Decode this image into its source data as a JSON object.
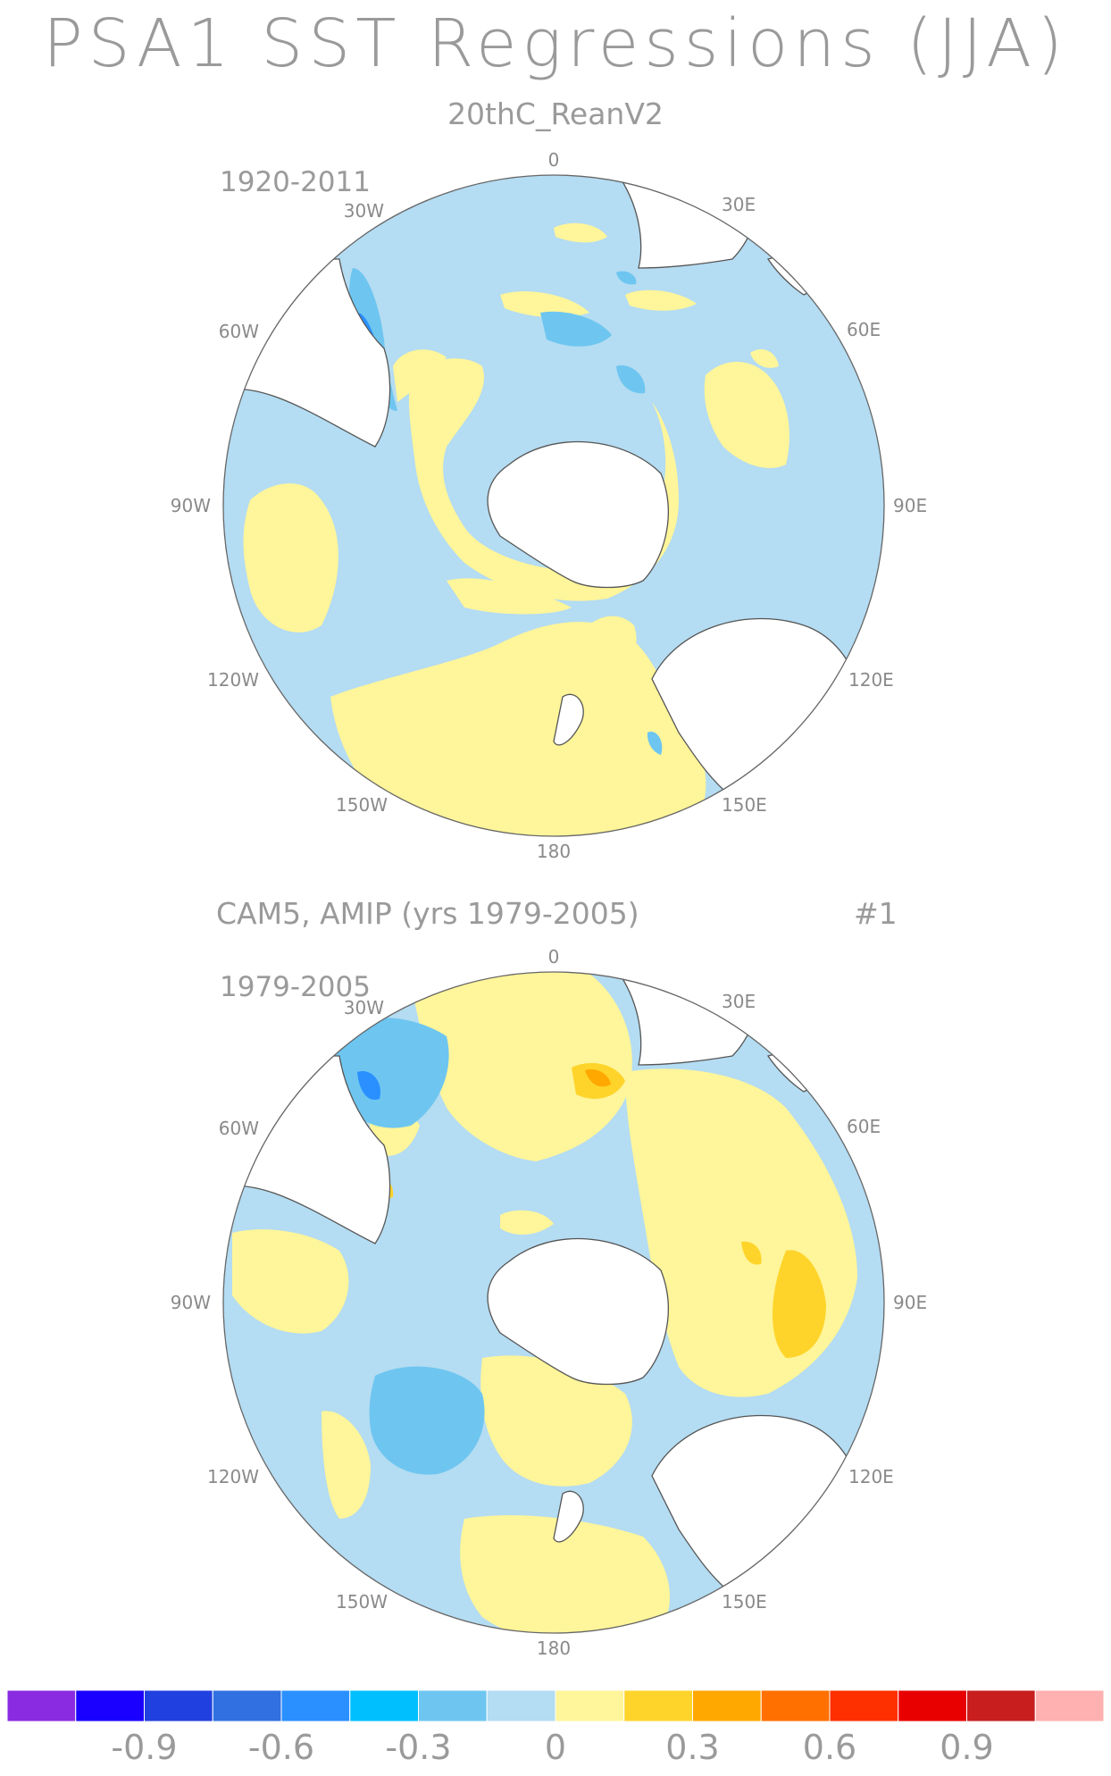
{
  "figure": {
    "title": "PSA1 SST Regressions (JJA)"
  },
  "panels": [
    {
      "subtitle": "20thC_ReanV2",
      "period": "1920-2011",
      "ensemble": ""
    },
    {
      "subtitle": "CAM5, AMIP (yrs 1979-2005)",
      "period": "1979-2005",
      "ensemble": "#1"
    }
  ],
  "longitude_labels": [
    "0",
    "30E",
    "60E",
    "90E",
    "120E",
    "150E",
    "180",
    "150W",
    "120W",
    "90W",
    "60W",
    "30W"
  ],
  "colors": {
    "land": "#ffffff",
    "coast": "#555555"
  },
  "colorbar": {
    "colors": [
      "#8a2be2",
      "#1a00ff",
      "#2040e0",
      "#3070e0",
      "#2a90ff",
      "#00bfff",
      "#6ec6f0",
      "#b4dcf2",
      "#fff59a",
      "#ffd42a",
      "#ffa800",
      "#ff7000",
      "#ff3000",
      "#e80000",
      "#c81e1e",
      "#ffb0b0"
    ],
    "tick_labels": [
      "-0.9",
      "-0.6",
      "-0.3",
      "0",
      "0.3",
      "0.6",
      "0.9"
    ],
    "tick_values": [
      -0.9,
      -0.6,
      -0.3,
      0,
      0.3,
      0.6,
      0.9
    ],
    "levels_min": -1.2,
    "levels_step": 0.15
  }
}
